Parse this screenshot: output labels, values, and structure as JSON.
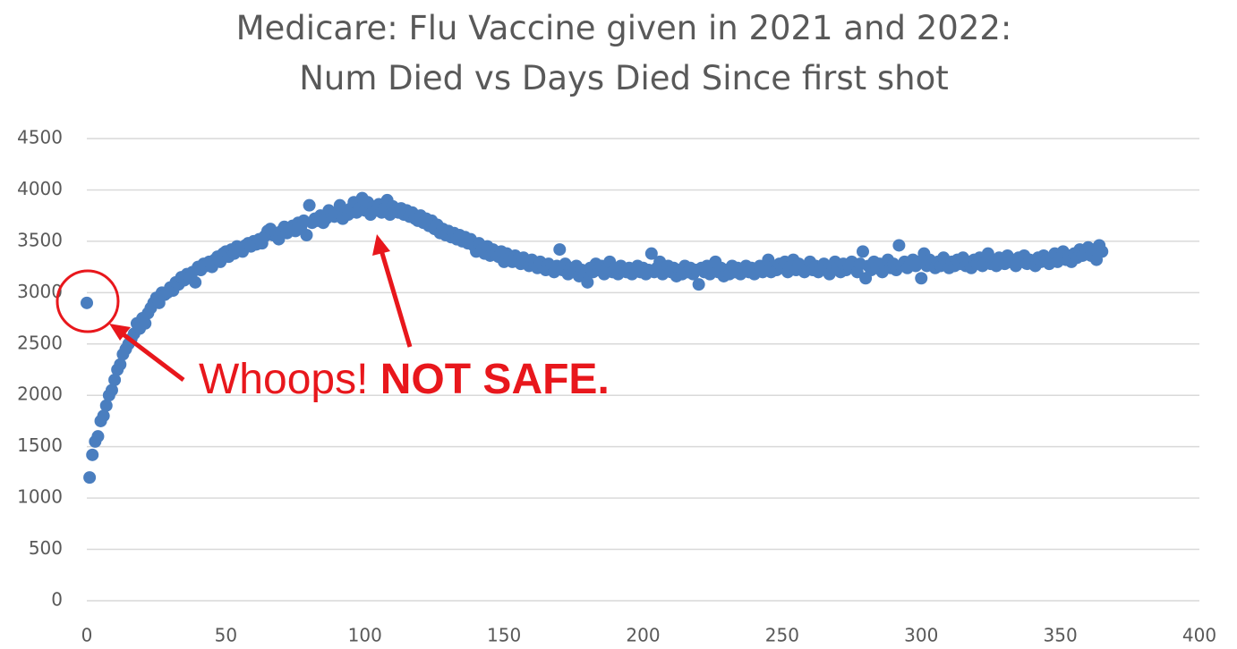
{
  "chart_data": {
    "type": "scatter",
    "title": [
      "Medicare: Flu Vaccine given in 2021 and 2022:",
      "Num Died vs Days Died Since first shot"
    ],
    "annotations": [
      "Whoops!",
      "NOT SAFE."
    ],
    "color": "#4a7ebf",
    "grid": true,
    "xlim": [
      0,
      400
    ],
    "xticks": [
      0,
      50,
      100,
      150,
      200,
      250,
      300,
      350,
      400
    ],
    "ylim": [
      0,
      4500
    ],
    "yticks": [
      0,
      500,
      1000,
      1500,
      2000,
      2500,
      3000,
      3500,
      4000,
      4500
    ],
    "series": [
      {
        "name": "Num Died",
        "x": [
          0,
          1,
          2,
          3,
          4,
          5,
          6,
          7,
          8,
          9,
          10,
          11,
          12,
          13,
          14,
          15,
          16,
          17,
          18,
          19,
          20,
          21,
          22,
          23,
          24,
          25,
          26,
          27,
          28,
          29,
          30,
          31,
          32,
          33,
          34,
          35,
          36,
          37,
          38,
          39,
          40,
          41,
          42,
          43,
          44,
          45,
          46,
          47,
          48,
          49,
          50,
          51,
          52,
          53,
          54,
          55,
          56,
          57,
          58,
          59,
          60,
          61,
          62,
          63,
          64,
          65,
          66,
          67,
          68,
          69,
          70,
          71,
          72,
          73,
          74,
          75,
          76,
          77,
          78,
          79,
          80,
          81,
          82,
          83,
          84,
          85,
          86,
          87,
          88,
          89,
          90,
          91,
          92,
          93,
          94,
          95,
          96,
          97,
          98,
          99,
          100,
          101,
          102,
          103,
          104,
          105,
          106,
          107,
          108,
          109,
          110,
          111,
          112,
          113,
          114,
          115,
          116,
          117,
          118,
          119,
          120,
          121,
          122,
          123,
          124,
          125,
          126,
          127,
          128,
          129,
          130,
          131,
          132,
          133,
          134,
          135,
          136,
          137,
          138,
          139,
          140,
          141,
          142,
          143,
          144,
          145,
          146,
          147,
          148,
          149,
          150,
          151,
          152,
          153,
          154,
          155,
          156,
          157,
          158,
          159,
          160,
          161,
          162,
          163,
          164,
          165,
          166,
          167,
          168,
          169,
          170,
          171,
          172,
          173,
          174,
          175,
          176,
          177,
          178,
          179,
          180,
          181,
          182,
          183,
          184,
          185,
          186,
          187,
          188,
          189,
          190,
          191,
          192,
          193,
          194,
          195,
          196,
          197,
          198,
          199,
          200,
          201,
          202,
          203,
          204,
          205,
          206,
          207,
          208,
          209,
          210,
          211,
          212,
          213,
          214,
          215,
          216,
          217,
          218,
          219,
          220,
          221,
          222,
          223,
          224,
          225,
          226,
          227,
          228,
          229,
          230,
          231,
          232,
          233,
          234,
          235,
          236,
          237,
          238,
          239,
          240,
          241,
          242,
          243,
          244,
          245,
          246,
          247,
          248,
          249,
          250,
          251,
          252,
          253,
          254,
          255,
          256,
          257,
          258,
          259,
          260,
          261,
          262,
          263,
          264,
          265,
          266,
          267,
          268,
          269,
          270,
          271,
          272,
          273,
          274,
          275,
          276,
          277,
          278,
          279,
          280,
          281,
          282,
          283,
          284,
          285,
          286,
          287,
          288,
          289,
          290,
          291,
          292,
          293,
          294,
          295,
          296,
          297,
          298,
          299,
          300,
          301,
          302,
          303,
          304,
          305,
          306,
          307,
          308,
          309,
          310,
          311,
          312,
          313,
          314,
          315,
          316,
          317,
          318,
          319,
          320,
          321,
          322,
          323,
          324,
          325,
          326,
          327,
          328,
          329,
          330,
          331,
          332,
          333,
          334,
          335,
          336,
          337,
          338,
          339,
          340,
          341,
          342,
          343,
          344,
          345,
          346,
          347,
          348,
          349,
          350,
          351,
          352,
          353,
          354,
          355,
          356,
          357,
          358,
          359,
          360,
          361,
          362,
          363,
          364,
          365
        ],
        "values": [
          2900,
          1200,
          1420,
          1550,
          1600,
          1750,
          1800,
          1900,
          2000,
          2050,
          2150,
          2250,
          2300,
          2400,
          2450,
          2500,
          2550,
          2600,
          2700,
          2650,
          2750,
          2700,
          2800,
          2850,
          2900,
          2950,
          2900,
          3000,
          2980,
          3000,
          3050,
          3020,
          3100,
          3080,
          3150,
          3120,
          3180,
          3150,
          3200,
          3100,
          3250,
          3220,
          3280,
          3260,
          3300,
          3250,
          3320,
          3350,
          3300,
          3380,
          3400,
          3350,
          3420,
          3380,
          3450,
          3420,
          3400,
          3460,
          3480,
          3450,
          3500,
          3470,
          3520,
          3480,
          3550,
          3600,
          3620,
          3560,
          3580,
          3520,
          3600,
          3640,
          3580,
          3620,
          3650,
          3600,
          3680,
          3640,
          3700,
          3560,
          3850,
          3680,
          3720,
          3700,
          3750,
          3680,
          3720,
          3800,
          3760,
          3740,
          3780,
          3850,
          3720,
          3800,
          3760,
          3820,
          3880,
          3780,
          3820,
          3920,
          3800,
          3880,
          3760,
          3840,
          3800,
          3860,
          3780,
          3820,
          3900,
          3760,
          3840,
          3800,
          3780,
          3820,
          3760,
          3800,
          3740,
          3780,
          3720,
          3700,
          3750,
          3680,
          3720,
          3650,
          3700,
          3620,
          3660,
          3580,
          3620,
          3560,
          3600,
          3540,
          3580,
          3520,
          3560,
          3500,
          3540,
          3480,
          3520,
          3460,
          3400,
          3480,
          3420,
          3380,
          3450,
          3360,
          3420,
          3380,
          3350,
          3400,
          3300,
          3380,
          3340,
          3300,
          3360,
          3320,
          3280,
          3340,
          3300,
          3260,
          3320,
          3280,
          3240,
          3300,
          3260,
          3220,
          3280,
          3240,
          3200,
          3260,
          3420,
          3220,
          3280,
          3180,
          3240,
          3200,
          3260,
          3160,
          3220,
          3180,
          3100,
          3240,
          3200,
          3280,
          3220,
          3260,
          3180,
          3240,
          3300,
          3200,
          3240,
          3180,
          3260,
          3220,
          3200,
          3240,
          3180,
          3220,
          3260,
          3200,
          3240,
          3180,
          3220,
          3380,
          3200,
          3240,
          3300,
          3180,
          3220,
          3260,
          3200,
          3240,
          3160,
          3220,
          3180,
          3260,
          3200,
          3240,
          3180,
          3220,
          3080,
          3240,
          3200,
          3260,
          3180,
          3220,
          3300,
          3200,
          3240,
          3160,
          3220,
          3180,
          3260,
          3200,
          3240,
          3180,
          3220,
          3260,
          3200,
          3240,
          3180,
          3220,
          3260,
          3200,
          3240,
          3320,
          3200,
          3260,
          3220,
          3280,
          3240,
          3300,
          3200,
          3260,
          3320,
          3220,
          3280,
          3240,
          3200,
          3260,
          3300,
          3220,
          3260,
          3200,
          3240,
          3280,
          3220,
          3180,
          3260,
          3300,
          3240,
          3200,
          3280,
          3220,
          3260,
          3300,
          3240,
          3200,
          3280,
          3400,
          3140,
          3260,
          3220,
          3300,
          3240,
          3280,
          3200,
          3260,
          3320,
          3240,
          3280,
          3220,
          3460,
          3260,
          3300,
          3240,
          3280,
          3320,
          3260,
          3300,
          3140,
          3380,
          3260,
          3320,
          3280,
          3240,
          3300,
          3260,
          3340,
          3280,
          3240,
          3300,
          3260,
          3320,
          3280,
          3340,
          3260,
          3300,
          3240,
          3320,
          3280,
          3340,
          3260,
          3300,
          3380,
          3280,
          3320,
          3260,
          3340,
          3300,
          3280,
          3360,
          3300,
          3320,
          3260,
          3340,
          3300,
          3360,
          3280,
          3320,
          3300,
          3260,
          3340,
          3300,
          3360,
          3320,
          3280,
          3340,
          3380,
          3300,
          3340,
          3400,
          3320,
          3360,
          3300,
          3380,
          3340,
          3420,
          3360,
          3400,
          3440,
          3360,
          3420,
          3320,
          3460,
          3400
        ]
      }
    ]
  }
}
